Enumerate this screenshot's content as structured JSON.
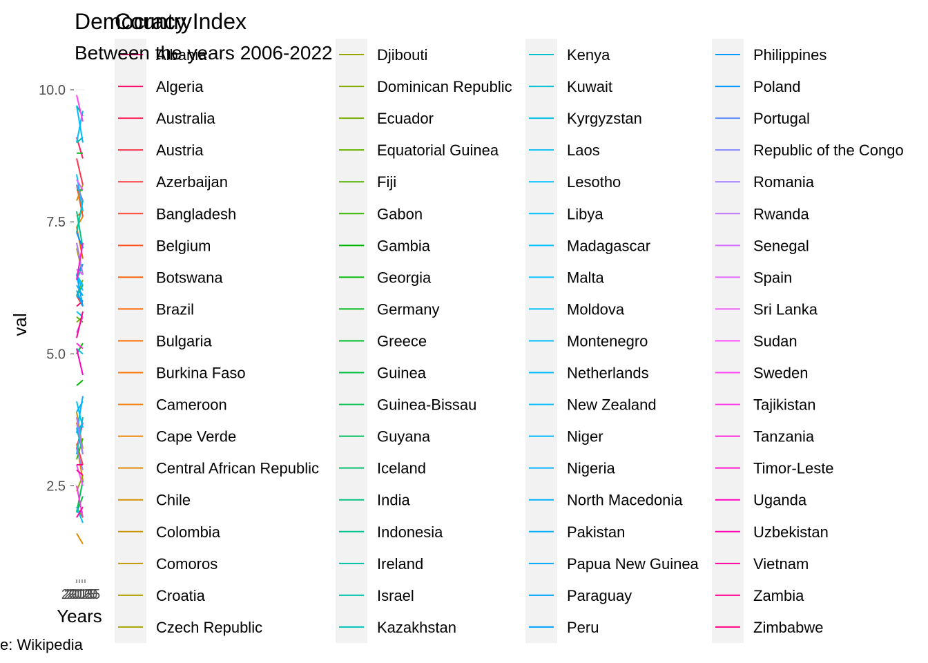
{
  "chart_data": {
    "type": "line",
    "title": "Democracy Index",
    "subtitle": "Between the years 2006-2022",
    "xlabel": "Years",
    "ylabel": "val",
    "caption": "e: Wikipedia",
    "legend_title": "Country",
    "legend_position": "right",
    "grid": false,
    "x_range": [
      2006,
      2022
    ],
    "x_tick_labels": [
      "2010",
      "2015",
      "2020",
      "2025"
    ],
    "ylim": [
      1.2,
      10.0
    ],
    "y_ticks": [
      2.5,
      5.0,
      7.5,
      10.0
    ],
    "y_tick_labels": [
      "2.5",
      "5.0",
      "7.5",
      "10.0"
    ],
    "series": [
      {
        "name": "Albania",
        "values": [
          5.9,
          6.0
        ]
      },
      {
        "name": "Algeria",
        "values": [
          3.2,
          3.7
        ]
      },
      {
        "name": "Australia",
        "values": [
          9.1,
          8.7
        ]
      },
      {
        "name": "Austria",
        "values": [
          8.7,
          8.2
        ]
      },
      {
        "name": "Azerbaijan",
        "values": [
          3.3,
          2.9
        ]
      },
      {
        "name": "Bangladesh",
        "values": [
          6.1,
          5.9
        ]
      },
      {
        "name": "Belgium",
        "values": [
          8.2,
          7.6
        ]
      },
      {
        "name": "Botswana",
        "values": [
          7.6,
          7.7
        ]
      },
      {
        "name": "Brazil",
        "values": [
          7.4,
          6.8
        ]
      },
      {
        "name": "Bulgaria",
        "values": [
          7.1,
          6.5
        ]
      },
      {
        "name": "Burkina Faso",
        "values": [
          3.7,
          3.1
        ]
      },
      {
        "name": "Cameroon",
        "values": [
          3.3,
          2.6
        ]
      },
      {
        "name": "Cape Verde",
        "values": [
          7.4,
          7.6
        ]
      },
      {
        "name": "Central African Republic",
        "values": [
          1.6,
          1.4
        ]
      },
      {
        "name": "Chile",
        "values": [
          7.9,
          8.2
        ]
      },
      {
        "name": "Colombia",
        "values": [
          6.4,
          6.7
        ]
      },
      {
        "name": "Comoros",
        "values": [
          3.9,
          3.2
        ]
      },
      {
        "name": "Croatia",
        "values": [
          7.0,
          6.5
        ]
      },
      {
        "name": "Czech Republic",
        "values": [
          8.2,
          7.9
        ]
      },
      {
        "name": "Djibouti",
        "values": [
          2.4,
          2.7
        ]
      },
      {
        "name": "Dominican Republic",
        "values": [
          6.1,
          6.4
        ]
      },
      {
        "name": "Ecuador",
        "values": [
          5.6,
          5.7
        ]
      },
      {
        "name": "Equatorial Guinea",
        "values": [
          2.1,
          1.9
        ]
      },
      {
        "name": "Fiji",
        "values": [
          5.7,
          5.6
        ]
      },
      {
        "name": "Gabon",
        "values": [
          3.0,
          3.4
        ]
      },
      {
        "name": "Gambia",
        "values": [
          4.4,
          4.5
        ]
      },
      {
        "name": "Georgia",
        "values": [
          5.0,
          5.2
        ]
      },
      {
        "name": "Germany",
        "values": [
          8.8,
          8.8
        ]
      },
      {
        "name": "Greece",
        "values": [
          8.1,
          8.1
        ]
      },
      {
        "name": "Guinea",
        "values": [
          2.0,
          2.3
        ]
      },
      {
        "name": "Guinea-Bissau",
        "values": [
          2.0,
          2.6
        ]
      },
      {
        "name": "Guyana",
        "values": [
          6.1,
          6.3
        ]
      },
      {
        "name": "Iceland",
        "values": [
          9.7,
          9.5
        ]
      },
      {
        "name": "India",
        "values": [
          7.7,
          7.0
        ]
      },
      {
        "name": "Indonesia",
        "values": [
          6.4,
          6.7
        ]
      },
      {
        "name": "Ireland",
        "values": [
          9.0,
          9.1
        ]
      },
      {
        "name": "Israel",
        "values": [
          7.3,
          7.9
        ]
      },
      {
        "name": "Kazakhstan",
        "values": [
          3.6,
          3.1
        ]
      },
      {
        "name": "Kenya",
        "values": [
          5.1,
          5.0
        ]
      },
      {
        "name": "Kuwait",
        "values": [
          3.1,
          3.8
        ]
      },
      {
        "name": "Kyrgyzstan",
        "values": [
          4.1,
          3.6
        ]
      },
      {
        "name": "Laos",
        "values": [
          2.1,
          1.8
        ]
      },
      {
        "name": "Lesotho",
        "values": [
          6.5,
          6.3
        ]
      },
      {
        "name": "Libya",
        "values": [
          2.0,
          2.0
        ]
      },
      {
        "name": "Madagascar",
        "values": [
          5.8,
          5.7
        ]
      },
      {
        "name": "Malta",
        "values": [
          8.4,
          7.7
        ]
      },
      {
        "name": "Moldova",
        "values": [
          6.5,
          6.2
        ]
      },
      {
        "name": "Montenegro",
        "values": [
          6.6,
          6.5
        ]
      },
      {
        "name": "Netherlands",
        "values": [
          9.7,
          9.0
        ]
      },
      {
        "name": "New Zealand",
        "values": [
          9.0,
          9.6
        ]
      },
      {
        "name": "Niger",
        "values": [
          3.5,
          3.7
        ]
      },
      {
        "name": "Nigeria",
        "values": [
          3.5,
          4.2
        ]
      },
      {
        "name": "North Macedonia",
        "values": [
          6.3,
          6.1
        ]
      },
      {
        "name": "Pakistan",
        "values": [
          3.9,
          4.1
        ]
      },
      {
        "name": "Papua New Guinea",
        "values": [
          6.5,
          5.9
        ]
      },
      {
        "name": "Paraguay",
        "values": [
          6.2,
          5.9
        ]
      },
      {
        "name": "Peru",
        "values": [
          6.1,
          6.0
        ]
      },
      {
        "name": "Philippines",
        "values": [
          6.5,
          6.7
        ]
      },
      {
        "name": "Poland",
        "values": [
          7.3,
          7.0
        ]
      },
      {
        "name": "Portugal",
        "values": [
          8.2,
          7.9
        ]
      },
      {
        "name": "Republic of the Congo",
        "values": [
          3.2,
          2.8
        ]
      },
      {
        "name": "Romania",
        "values": [
          7.1,
          6.5
        ]
      },
      {
        "name": "Rwanda",
        "values": [
          3.8,
          3.1
        ]
      },
      {
        "name": "Senegal",
        "values": [
          5.4,
          5.7
        ]
      },
      {
        "name": "Spain",
        "values": [
          8.3,
          8.1
        ]
      },
      {
        "name": "Sri Lanka",
        "values": [
          6.6,
          6.5
        ]
      },
      {
        "name": "Sudan",
        "values": [
          2.9,
          2.5
        ]
      },
      {
        "name": "Sweden",
        "values": [
          9.9,
          9.4
        ]
      },
      {
        "name": "Tajikistan",
        "values": [
          2.5,
          1.9
        ]
      },
      {
        "name": "Tanzania",
        "values": [
          5.2,
          5.1
        ]
      },
      {
        "name": "Timor-Leste",
        "values": [
          6.4,
          7.1
        ]
      },
      {
        "name": "Uganda",
        "values": [
          5.1,
          4.6
        ]
      },
      {
        "name": "Uzbekistan",
        "values": [
          1.9,
          2.1
        ]
      },
      {
        "name": "Vietnam",
        "values": [
          2.8,
          2.7
        ]
      },
      {
        "name": "Zambia",
        "values": [
          5.3,
          5.8
        ]
      },
      {
        "name": "Zimbabwe",
        "values": [
          2.9,
          2.9
        ]
      }
    ]
  }
}
